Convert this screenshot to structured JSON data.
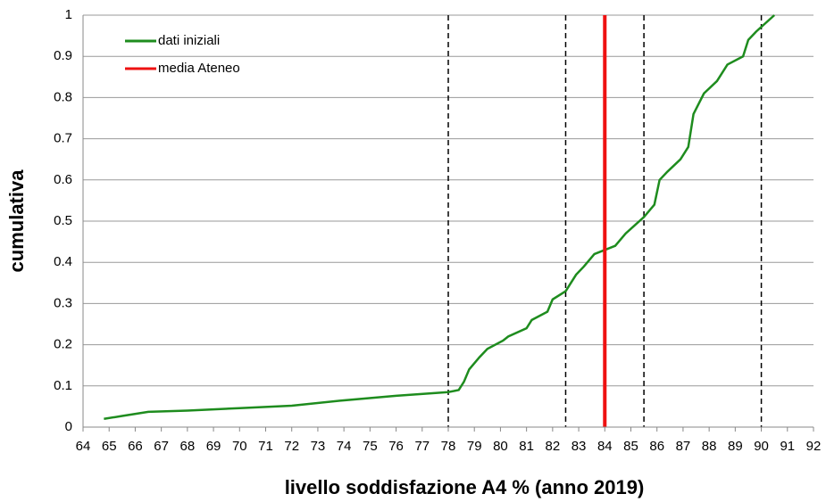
{
  "chart_data": {
    "type": "line",
    "xlabel": "livello soddisfazione A4 % (anno 2019)",
    "ylabel": "cumulativa",
    "xlim": [
      64,
      92
    ],
    "xticks": [
      64,
      65,
      66,
      67,
      68,
      69,
      70,
      71,
      72,
      73,
      74,
      75,
      76,
      77,
      78,
      79,
      80,
      81,
      82,
      83,
      84,
      85,
      86,
      87,
      88,
      89,
      90,
      91,
      92
    ],
    "ylim": [
      0,
      1
    ],
    "yticks": [
      0,
      0.1,
      0.2,
      0.3,
      0.4,
      0.5,
      0.6,
      0.7,
      0.8,
      0.9,
      1
    ],
    "grid": true,
    "legend": "upper left",
    "series": [
      {
        "name": "dati iniziali",
        "color": "#1e8c1e",
        "x": [
          64.8,
          65.5,
          66.5,
          68,
          70,
          72,
          74,
          76,
          78,
          78.4,
          78.6,
          78.8,
          79.2,
          79.5,
          80.1,
          80.3,
          81,
          81.2,
          81.8,
          82,
          82.5,
          82.9,
          83.2,
          83.6,
          84,
          84.4,
          84.8,
          85.5,
          85.9,
          86.1,
          86.4,
          86.9,
          87.2,
          87.4,
          87.8,
          88.3,
          88.7,
          89.3,
          89.5,
          89.8,
          90.5
        ],
        "values": [
          0.02,
          0.027,
          0.037,
          0.04,
          0.046,
          0.052,
          0.065,
          0.076,
          0.085,
          0.09,
          0.11,
          0.14,
          0.17,
          0.19,
          0.21,
          0.22,
          0.24,
          0.26,
          0.28,
          0.31,
          0.33,
          0.37,
          0.39,
          0.42,
          0.43,
          0.44,
          0.47,
          0.51,
          0.54,
          0.6,
          0.62,
          0.65,
          0.68,
          0.76,
          0.81,
          0.84,
          0.88,
          0.9,
          0.94,
          0.96,
          1.0
        ]
      },
      {
        "name": "media Ateneo",
        "color": "#ee1111",
        "x": [
          84,
          84
        ],
        "values": [
          0,
          1
        ]
      }
    ],
    "vlines": [
      78,
      82.5,
      85.5,
      90
    ],
    "vline_color": "#000000"
  }
}
